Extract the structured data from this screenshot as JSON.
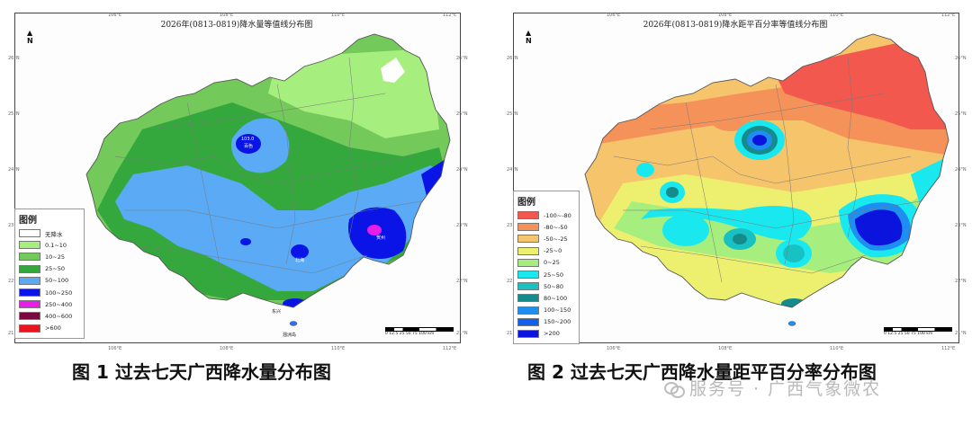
{
  "panels": [
    {
      "title": "2026年(0813-0819)降水量等值线分布图",
      "lon_ticks": [
        "106°E",
        "108°E",
        "110°E",
        "112°E"
      ],
      "lat_ticks": [
        "26°N",
        "25°N",
        "24°N",
        "23°N",
        "22°N",
        "21°N"
      ],
      "legend_title": "图例",
      "legend": [
        {
          "label": "无降水",
          "color": "#ffffff"
        },
        {
          "label": "0.1~10",
          "color": "#a6ee7d"
        },
        {
          "label": "10~25",
          "color": "#73c95a"
        },
        {
          "label": "25~50",
          "color": "#34a83d"
        },
        {
          "label": "50~100",
          "color": "#5aaaf5"
        },
        {
          "label": "100~250",
          "color": "#0a14e6"
        },
        {
          "label": "250~400",
          "color": "#e81ee8"
        },
        {
          "label": "400~600",
          "color": "#7a0a3c"
        },
        {
          "label": ">600",
          "color": "#e8141e"
        }
      ],
      "station_labels": [
        {
          "text": "103.0",
          "name": "百色"
        },
        {
          "text": "贺州"
        },
        {
          "text": "北海"
        },
        {
          "text": "东兴"
        },
        {
          "text": "涠洲岛"
        }
      ],
      "north_label": "N",
      "scale_label": "0 12.5 25   50   75   100 km",
      "caption": "图 1  过去七天广西降水量分布图"
    },
    {
      "title": "2026年(0813-0819)降水距平百分率等值线分布图",
      "lon_ticks": [
        "106°E",
        "108°E",
        "110°E",
        "112°E"
      ],
      "lat_ticks": [
        "26°N",
        "25°N",
        "24°N",
        "23°N",
        "22°N",
        "21°N"
      ],
      "legend_title": "图例",
      "legend": [
        {
          "label": "-100~-80",
          "color": "#f2584e"
        },
        {
          "label": "-80~-50",
          "color": "#f5925a"
        },
        {
          "label": "-50~-25",
          "color": "#f6c46a"
        },
        {
          "label": "-25~0",
          "color": "#ecf06e"
        },
        {
          "label": "0~25",
          "color": "#a6ee7d"
        },
        {
          "label": "25~50",
          "color": "#19e8ee"
        },
        {
          "label": "50~80",
          "color": "#18c2c2"
        },
        {
          "label": "80~100",
          "color": "#168b8c"
        },
        {
          "label": "100~150",
          "color": "#1e8ff0"
        },
        {
          "label": "150~200",
          "color": "#1060f0"
        },
        {
          "label": ">200",
          "color": "#0a14dc"
        }
      ],
      "north_label": "N",
      "scale_label": "0 12.5 25   50   75   100 km",
      "caption": "图 2  过去七天广西降水量距平百分率分布图"
    }
  ],
  "watermark": "服务号 · 广西气象微农"
}
